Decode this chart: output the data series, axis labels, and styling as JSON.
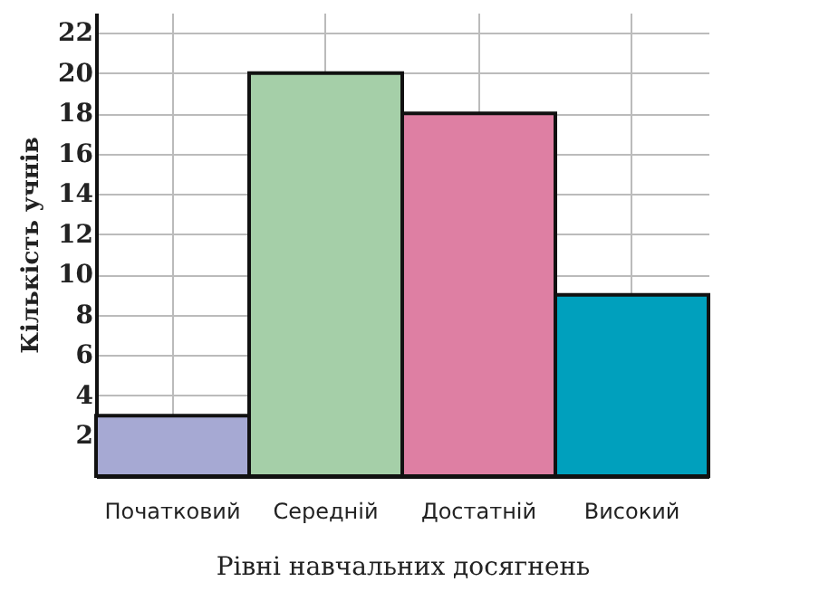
{
  "chart_data": {
    "type": "bar",
    "xlabel": "Рівні навчальних досягнень",
    "ylabel": "Кількість учнів",
    "categories": [
      "Початковий",
      "Середній",
      "Достатній",
      "Високий"
    ],
    "values": [
      3,
      20,
      18,
      9
    ],
    "colors": [
      "#a6a9d3",
      "#a5cfa8",
      "#de7fa3",
      "#00a0bd"
    ],
    "ylim": [
      0,
      23
    ],
    "yticks": [
      2,
      4,
      6,
      8,
      10,
      12,
      14,
      16,
      18,
      20,
      22
    ],
    "grid": true
  }
}
